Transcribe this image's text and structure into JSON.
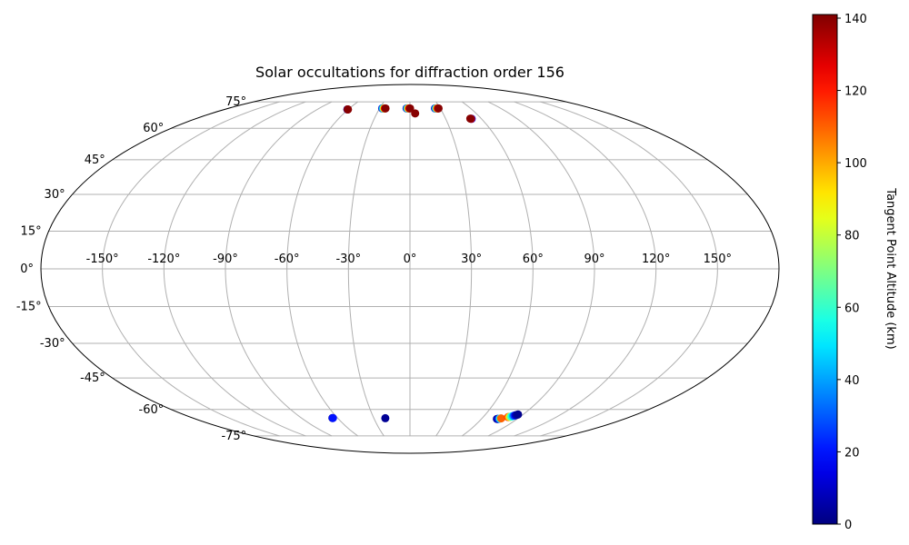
{
  "chart_data": {
    "type": "scatter",
    "projection": "mollweide",
    "title": "Solar occultations for diffraction order 156",
    "xlim": [
      -180,
      180
    ],
    "ylim": [
      -90,
      90
    ],
    "grid": true,
    "lon_ticks": [
      -150,
      -120,
      -90,
      -60,
      -30,
      0,
      30,
      60,
      90,
      120,
      150
    ],
    "lat_ticks": [
      75,
      60,
      45,
      30,
      15,
      0,
      -15,
      -30,
      -45,
      -60,
      -75
    ],
    "lon_tick_labels": [
      "-150°",
      "-120°",
      "-90°",
      "-60°",
      "-30°",
      "0°",
      "30°",
      "60°",
      "90°",
      "120°",
      "150°"
    ],
    "lat_tick_labels": [
      "75°",
      "60°",
      "45°",
      "30°",
      "15°",
      "0°",
      "-15°",
      "-30°",
      "-45°",
      "-60°",
      "-75°"
    ],
    "colormap": "jet",
    "colorbar": {
      "label": "Tangent Point Altitude (km)",
      "min": 0,
      "max": 141,
      "ticks": [
        0,
        20,
        40,
        60,
        80,
        100,
        120,
        140
      ],
      "tick_labels": [
        "0",
        "20",
        "40",
        "60",
        "80",
        "100",
        "120",
        "140"
      ]
    },
    "points": [
      {
        "lon": -60.8,
        "lat": 70.3,
        "alt": 5
      },
      {
        "lon": -60.4,
        "lat": 70.3,
        "alt": 130
      },
      {
        "lon": -60.2,
        "lat": 70.3,
        "alt": 140
      },
      {
        "lon": -27.5,
        "lat": 70.9,
        "alt": 10
      },
      {
        "lon": -27.0,
        "lat": 70.9,
        "alt": 35
      },
      {
        "lon": -26.3,
        "lat": 70.9,
        "alt": 60
      },
      {
        "lon": -25.6,
        "lat": 70.9,
        "alt": 90
      },
      {
        "lon": -24.9,
        "lat": 70.9,
        "alt": 120
      },
      {
        "lon": -24.2,
        "lat": 70.9,
        "alt": 140
      },
      {
        "lon": -3.3,
        "lat": 70.9,
        "alt": 10
      },
      {
        "lon": -2.7,
        "lat": 70.9,
        "alt": 40
      },
      {
        "lon": -2.0,
        "lat": 70.9,
        "alt": 75
      },
      {
        "lon": -1.3,
        "lat": 70.9,
        "alt": 100
      },
      {
        "lon": -0.6,
        "lat": 70.9,
        "alt": 125
      },
      {
        "lon": 0.1,
        "lat": 70.9,
        "alt": 140
      },
      {
        "lon": 4.7,
        "lat": 68.0,
        "alt": 140
      },
      {
        "lon": 24.8,
        "lat": 70.9,
        "alt": 10
      },
      {
        "lon": 25.5,
        "lat": 70.9,
        "alt": 40
      },
      {
        "lon": 26.2,
        "lat": 70.9,
        "alt": 70
      },
      {
        "lon": 26.9,
        "lat": 70.9,
        "alt": 100
      },
      {
        "lon": 27.6,
        "lat": 70.9,
        "alt": 125
      },
      {
        "lon": 28.3,
        "lat": 70.9,
        "alt": 140
      },
      {
        "lon": 51.8,
        "lat": 65.0,
        "alt": 20
      },
      {
        "lon": 51.3,
        "lat": 65.0,
        "alt": 130
      },
      {
        "lon": 50.8,
        "lat": 65.1,
        "alt": 140
      },
      {
        "lon": -64.3,
        "lat": -64.5,
        "alt": 5
      },
      {
        "lon": -63.9,
        "lat": -64.5,
        "alt": 20
      },
      {
        "lon": -20.5,
        "lat": -64.6,
        "alt": 3
      },
      {
        "lon": 73.0,
        "lat": -65.0,
        "alt": 3
      },
      {
        "lon": 73.5,
        "lat": -65.0,
        "alt": 5
      },
      {
        "lon": 74.0,
        "lat": -65.0,
        "alt": 10
      },
      {
        "lon": 74.6,
        "lat": -64.9,
        "alt": 30
      },
      {
        "lon": 75.3,
        "lat": -64.8,
        "alt": 60
      },
      {
        "lon": 76.0,
        "lat": -64.7,
        "alt": 110
      },
      {
        "lon": 80.5,
        "lat": -64.0,
        "alt": 120
      },
      {
        "lon": 81.0,
        "lat": -64.0,
        "alt": 105
      },
      {
        "lon": 81.6,
        "lat": -63.9,
        "alt": 90
      },
      {
        "lon": 82.2,
        "lat": -63.8,
        "alt": 70
      },
      {
        "lon": 82.8,
        "lat": -63.6,
        "alt": 55
      },
      {
        "lon": 83.5,
        "lat": -63.4,
        "alt": 40
      },
      {
        "lon": 84.1,
        "lat": -63.2,
        "alt": 25
      },
      {
        "lon": 84.7,
        "lat": -63.0,
        "alt": 12
      },
      {
        "lon": 85.3,
        "lat": -62.8,
        "alt": 5
      },
      {
        "lon": 85.9,
        "lat": -62.6,
        "alt": 2
      }
    ]
  }
}
